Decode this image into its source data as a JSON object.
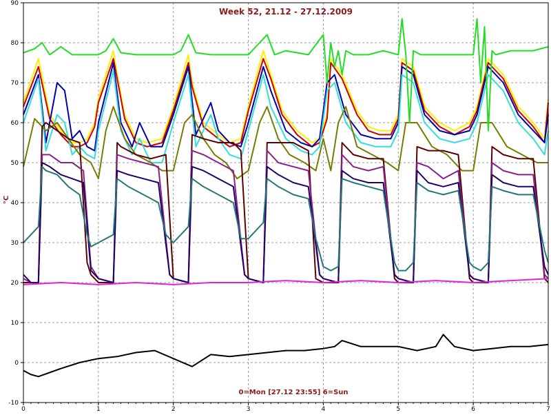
{
  "chart_data": {
    "type": "line",
    "title": "Week 52, 21.12 - 27.12.2009",
    "ylabel": "°C",
    "footer": "0=Mon [27.12 23:55] 6=Sun",
    "xlim": [
      0,
      7
    ],
    "ylim": [
      -10,
      90
    ],
    "x_ticks": [
      "0",
      "1",
      "2",
      "3",
      "4",
      "5",
      "6",
      "7"
    ],
    "y_ticks": [
      "-10",
      "0",
      "10",
      "20",
      "30",
      "40",
      "50",
      "60",
      "70",
      "80",
      "90"
    ],
    "grid": true,
    "colors": {
      "title": "#8b1a1a",
      "ylabel": "#8b1a1a",
      "footer": "#8b1a1a",
      "grid": "#9a9a9a"
    },
    "series": [
      {
        "color": "#ffee00",
        "x": [
          0,
          0.2,
          0.35,
          0.5,
          0.65,
          0.75,
          0.85,
          0.95,
          1.0,
          1.2,
          1.25,
          1.35,
          1.5,
          1.65,
          1.85,
          2.0,
          2.2,
          2.25,
          2.4,
          2.6,
          2.75,
          2.9,
          3.0,
          3.2,
          3.3,
          3.45,
          3.65,
          3.85,
          3.95,
          4.05,
          4.1,
          4.25,
          4.45,
          4.6,
          4.75,
          4.9,
          5.0,
          5.05,
          5.2,
          5.35,
          5.55,
          5.75,
          5.95,
          6.05,
          6.2,
          6.4,
          6.6,
          6.8,
          6.95,
          7.0
        ],
        "y": [
          65,
          76,
          62,
          58,
          55,
          55,
          56,
          60,
          66,
          78,
          72,
          62,
          56,
          55,
          56,
          64,
          77,
          70,
          60,
          57,
          55,
          56,
          64,
          78,
          72,
          63,
          58,
          55,
          56,
          62,
          76,
          72,
          63,
          59,
          58,
          58,
          62,
          76,
          74,
          64,
          60,
          58,
          60,
          64,
          76,
          72,
          64,
          60,
          56,
          66
        ]
      },
      {
        "color": "#cc0000",
        "x": [
          0,
          0.2,
          0.35,
          0.5,
          0.65,
          0.75,
          0.85,
          0.95,
          1.0,
          1.2,
          1.25,
          1.35,
          1.5,
          1.65,
          1.85,
          2.0,
          2.2,
          2.25,
          2.4,
          2.6,
          2.75,
          2.9,
          3.0,
          3.2,
          3.3,
          3.45,
          3.65,
          3.85,
          3.95,
          4.05,
          4.1,
          4.25,
          4.45,
          4.6,
          4.75,
          4.9,
          5.0,
          5.05,
          5.2,
          5.35,
          5.55,
          5.75,
          5.95,
          6.05,
          6.2,
          6.4,
          6.6,
          6.8,
          6.95,
          7.0
        ],
        "y": [
          64,
          74,
          61,
          57,
          54,
          54,
          55,
          59,
          65,
          76,
          71,
          61,
          55,
          54,
          55,
          63,
          75,
          69,
          59,
          56,
          54,
          55,
          63,
          76,
          71,
          62,
          57,
          54,
          55,
          61,
          75,
          71,
          62,
          58,
          57,
          57,
          61,
          75,
          73,
          63,
          59,
          57,
          59,
          63,
          75,
          71,
          63,
          59,
          55,
          65
        ]
      },
      {
        "color": "#0000aa",
        "x": [
          0,
          0.2,
          0.3,
          0.45,
          0.55,
          0.65,
          0.75,
          0.85,
          0.95,
          1.0,
          1.2,
          1.3,
          1.45,
          1.55,
          1.7,
          1.85,
          2.0,
          2.2,
          2.3,
          2.5,
          2.6,
          2.75,
          2.9,
          3.0,
          3.2,
          3.3,
          3.5,
          3.7,
          3.85,
          3.95,
          4.05,
          4.15,
          4.3,
          4.5,
          4.7,
          4.9,
          5.0,
          5.05,
          5.2,
          5.35,
          5.55,
          5.75,
          5.95,
          6.05,
          6.2,
          6.4,
          6.6,
          6.8,
          6.95,
          7.0
        ],
        "y": [
          62,
          72,
          55,
          70,
          68,
          56,
          58,
          54,
          53,
          60,
          75,
          60,
          54,
          60,
          54,
          54,
          62,
          74,
          57,
          65,
          58,
          55,
          54,
          60,
          74,
          68,
          58,
          55,
          54,
          56,
          70,
          72,
          62,
          57,
          56,
          56,
          60,
          74,
          72,
          62,
          58,
          57,
          58,
          62,
          74,
          70,
          62,
          58,
          55,
          62
        ]
      },
      {
        "color": "#33dddd",
        "x": [
          0,
          0.2,
          0.3,
          0.45,
          0.55,
          0.65,
          0.75,
          0.85,
          0.95,
          1.0,
          1.2,
          1.3,
          1.45,
          1.55,
          1.7,
          1.85,
          2.0,
          2.2,
          2.3,
          2.5,
          2.6,
          2.75,
          2.9,
          3.0,
          3.2,
          3.3,
          3.5,
          3.7,
          3.85,
          3.95,
          4.05,
          4.15,
          4.3,
          4.5,
          4.7,
          4.9,
          5.0,
          5.05,
          5.2,
          5.35,
          5.55,
          5.75,
          5.95,
          6.05,
          6.2,
          6.4,
          6.6,
          6.8,
          6.95,
          7.0
        ],
        "y": [
          60,
          71,
          53,
          62,
          60,
          52,
          54,
          52,
          51,
          58,
          73,
          58,
          52,
          56,
          50,
          50,
          60,
          72,
          54,
          62,
          56,
          52,
          51,
          58,
          72,
          64,
          56,
          53,
          52,
          54,
          68,
          70,
          60,
          55,
          54,
          54,
          58,
          72,
          70,
          60,
          56,
          55,
          56,
          60,
          72,
          68,
          60,
          56,
          52,
          58
        ]
      },
      {
        "color": "#7a7a00",
        "x": [
          0,
          0.15,
          0.3,
          0.45,
          0.6,
          0.75,
          0.9,
          1.0,
          1.1,
          1.2,
          1.35,
          1.5,
          1.7,
          1.85,
          2.0,
          2.15,
          2.25,
          2.4,
          2.55,
          2.7,
          2.85,
          3.0,
          3.15,
          3.25,
          3.4,
          3.55,
          3.75,
          3.9,
          4.0,
          4.1,
          4.2,
          4.3,
          4.45,
          4.65,
          4.85,
          5.0,
          5.1,
          5.25,
          5.45,
          5.65,
          5.85,
          6.0,
          6.1,
          6.25,
          6.45,
          6.65,
          6.85,
          7.0
        ],
        "y": [
          49,
          61,
          58,
          60,
          56,
          52,
          50,
          46,
          58,
          64,
          56,
          52,
          50,
          48,
          48,
          60,
          62,
          56,
          52,
          50,
          46,
          48,
          60,
          64,
          56,
          52,
          50,
          48,
          56,
          48,
          60,
          64,
          54,
          52,
          50,
          48,
          60,
          60,
          54,
          52,
          48,
          48,
          60,
          60,
          54,
          52,
          50,
          50
        ]
      },
      {
        "color": "#5a0000",
        "x": [
          0,
          0.1,
          0.2,
          0.25,
          0.3,
          0.45,
          0.6,
          0.75,
          0.85,
          0.9,
          1.0,
          1.2,
          1.25,
          1.3,
          1.5,
          1.7,
          1.9,
          2.0,
          2.2,
          2.25,
          2.4,
          2.6,
          2.8,
          2.9,
          3.0,
          3.2,
          3.25,
          3.4,
          3.6,
          3.8,
          3.9,
          4.0,
          4.2,
          4.25,
          4.4,
          4.6,
          4.8,
          4.95,
          5.0,
          5.2,
          5.25,
          5.4,
          5.6,
          5.8,
          5.95,
          6.0,
          6.2,
          6.25,
          6.4,
          6.6,
          6.8,
          6.95,
          7.0
        ],
        "y": [
          20,
          20,
          20,
          59,
          60,
          58,
          56,
          55,
          25,
          22,
          20,
          20,
          55,
          54,
          52,
          51,
          52,
          21,
          20,
          57,
          56,
          55,
          55,
          53,
          21,
          20,
          55,
          55,
          55,
          53,
          21,
          20,
          20,
          55,
          52,
          51,
          51,
          21,
          20,
          20,
          54,
          53,
          53,
          52,
          21,
          20,
          20,
          54,
          52,
          51,
          51,
          21,
          20
        ]
      },
      {
        "color": "#882288",
        "x": [
          0,
          0.1,
          0.2,
          0.25,
          0.35,
          0.5,
          0.65,
          0.8,
          0.9,
          1.0,
          1.2,
          1.25,
          1.4,
          1.6,
          1.8,
          1.95,
          2.0,
          2.2,
          2.25,
          2.4,
          2.6,
          2.8,
          2.95,
          3.0,
          3.2,
          3.25,
          3.4,
          3.6,
          3.8,
          3.95,
          4.0,
          4.2,
          4.25,
          4.4,
          4.6,
          4.8,
          4.95,
          5.0,
          5.2,
          5.25,
          5.4,
          5.6,
          5.8,
          5.95,
          6.0,
          6.2,
          6.25,
          6.4,
          6.6,
          6.8,
          6.95,
          7.0
        ],
        "y": [
          21,
          20,
          20,
          52,
          52,
          50,
          50,
          48,
          24,
          21,
          20,
          52,
          51,
          50,
          49,
          22,
          21,
          20,
          53,
          52,
          50,
          48,
          22,
          21,
          20,
          53,
          50,
          49,
          48,
          22,
          21,
          20,
          52,
          49,
          48,
          49,
          22,
          21,
          20,
          50,
          49,
          46,
          48,
          22,
          21,
          20,
          50,
          48,
          47,
          47,
          22,
          21
        ]
      },
      {
        "color": "#220066",
        "x": [
          0,
          0.1,
          0.2,
          0.25,
          0.35,
          0.5,
          0.65,
          0.8,
          0.9,
          1.0,
          1.2,
          1.25,
          1.4,
          1.6,
          1.8,
          1.95,
          2.0,
          2.2,
          2.25,
          2.4,
          2.6,
          2.8,
          2.95,
          3.0,
          3.2,
          3.25,
          3.4,
          3.6,
          3.8,
          3.95,
          4.0,
          4.2,
          4.25,
          4.4,
          4.6,
          4.8,
          4.95,
          5.0,
          5.2,
          5.25,
          5.4,
          5.6,
          5.8,
          5.95,
          6.0,
          6.2,
          6.25,
          6.4,
          6.6,
          6.8,
          6.95,
          7.0
        ],
        "y": [
          22,
          20,
          20,
          50,
          49,
          47,
          46,
          45,
          23,
          21,
          20,
          48,
          47,
          46,
          45,
          22,
          21,
          20,
          49,
          48,
          46,
          44,
          22,
          21,
          20,
          49,
          47,
          45,
          44,
          22,
          21,
          20,
          48,
          46,
          45,
          45,
          22,
          21,
          20,
          48,
          45,
          44,
          45,
          22,
          21,
          20,
          47,
          45,
          44,
          44,
          24,
          22
        ]
      },
      {
        "color": "#227777",
        "x": [
          0,
          0.1,
          0.2,
          0.25,
          0.3,
          0.45,
          0.6,
          0.75,
          0.85,
          0.9,
          1.0,
          1.1,
          1.2,
          1.25,
          1.4,
          1.6,
          1.8,
          1.9,
          2.0,
          2.1,
          2.2,
          2.25,
          2.4,
          2.6,
          2.8,
          2.9,
          3.0,
          3.1,
          3.2,
          3.25,
          3.4,
          3.6,
          3.8,
          3.9,
          4.0,
          4.1,
          4.2,
          4.25,
          4.4,
          4.6,
          4.8,
          4.95,
          5.0,
          5.1,
          5.2,
          5.25,
          5.4,
          5.6,
          5.8,
          5.95,
          6.0,
          6.1,
          6.2,
          6.25,
          6.4,
          6.6,
          6.8,
          6.95,
          7.0
        ],
        "y": [
          30,
          32,
          34,
          49,
          48,
          47,
          44,
          42,
          32,
          29,
          30,
          31,
          32,
          46,
          44,
          42,
          40,
          32,
          30,
          32,
          34,
          46,
          44,
          42,
          40,
          31,
          31,
          33,
          35,
          46,
          44,
          42,
          41,
          31,
          24,
          23,
          24,
          46,
          45,
          44,
          43,
          25,
          23,
          23,
          25,
          45,
          43,
          42,
          43,
          25,
          24,
          23,
          25,
          44,
          43,
          42,
          42,
          28,
          25
        ]
      },
      {
        "color": "#dd22dd",
        "x": [
          0,
          0.5,
          1.0,
          1.5,
          2.0,
          2.5,
          3.0,
          3.5,
          4.0,
          4.5,
          5.0,
          5.5,
          6.0,
          6.5,
          7.0
        ],
        "y": [
          19.5,
          20,
          19.5,
          20,
          19.5,
          20,
          20,
          20.5,
          20,
          20.5,
          20,
          20.5,
          20,
          20.5,
          21
        ]
      },
      {
        "color": "#22dd22",
        "x": [
          0,
          0.15,
          0.25,
          0.35,
          0.5,
          0.65,
          0.8,
          1.0,
          1.1,
          1.2,
          1.3,
          1.5,
          1.8,
          2.0,
          2.1,
          2.2,
          2.3,
          2.5,
          2.8,
          3.0,
          3.15,
          3.25,
          3.35,
          3.5,
          3.8,
          4.0,
          4.05,
          4.1,
          4.15,
          4.2,
          4.25,
          4.3,
          4.4,
          4.6,
          4.8,
          5.0,
          5.05,
          5.1,
          5.15,
          5.2,
          5.3,
          5.4,
          5.6,
          5.8,
          6.0,
          6.05,
          6.1,
          6.15,
          6.2,
          6.25,
          6.3,
          6.5,
          6.8,
          7.0
        ],
        "y": [
          77.5,
          78.5,
          80,
          77,
          79,
          77,
          77,
          77,
          78,
          81,
          77.5,
          77,
          77,
          77,
          78,
          82,
          77.5,
          77,
          77,
          77,
          80,
          82,
          77,
          78,
          77,
          82,
          70,
          80,
          74,
          78,
          72,
          78,
          77,
          77,
          78,
          77,
          86,
          77,
          60,
          78,
          77,
          77,
          77,
          77,
          77,
          86,
          70,
          84,
          58,
          78,
          77,
          78,
          78,
          79
        ]
      },
      {
        "color": "#000000",
        "x": [
          0,
          0.1,
          0.2,
          0.35,
          0.5,
          0.75,
          1.0,
          1.25,
          1.5,
          1.75,
          2.0,
          2.25,
          2.5,
          2.75,
          3.0,
          3.25,
          3.5,
          3.75,
          4.0,
          4.15,
          4.25,
          4.5,
          4.75,
          5.0,
          5.25,
          5.5,
          5.6,
          5.75,
          6.0,
          6.25,
          6.5,
          6.75,
          7.0
        ],
        "y": [
          -2,
          -3,
          -3.5,
          -2.5,
          -1.5,
          0,
          1,
          1.5,
          2.5,
          3,
          1,
          -1,
          2,
          1.5,
          2,
          2.5,
          3,
          3,
          3.5,
          4,
          5.5,
          4,
          4,
          4,
          3,
          4,
          7,
          4,
          3,
          3.5,
          4,
          4,
          4.5
        ]
      }
    ]
  }
}
